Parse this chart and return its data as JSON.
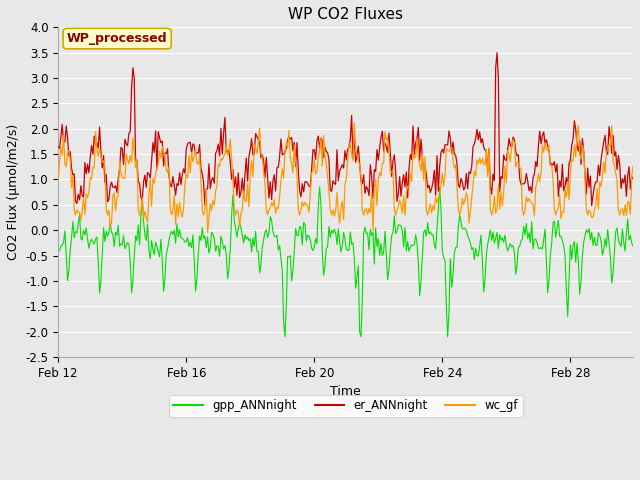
{
  "title": "WP CO2 Fluxes",
  "xlabel": "Time",
  "ylabel": "CO2 Flux (μmol/m2/s)",
  "ylim": [
    -2.5,
    4.0
  ],
  "yticks": [
    -2.5,
    -2.0,
    -1.5,
    -1.0,
    -0.5,
    0.0,
    0.5,
    1.0,
    1.5,
    2.0,
    2.5,
    3.0,
    3.5,
    4.0
  ],
  "xtick_labels": [
    "Feb 12",
    "Feb 16",
    "Feb 20",
    "Feb 24",
    "Feb 28"
  ],
  "xtick_positions": [
    0,
    96,
    192,
    288,
    384
  ],
  "n_points": 432,
  "bg_color": "#e8e8e8",
  "plot_bg_color": "#e8e8e8",
  "grid_color": "#ffffff",
  "line_colors": {
    "gpp": "#00dd00",
    "er": "#cc0000",
    "wc": "#ff9900"
  },
  "annotation_text": "WP_processed",
  "annotation_color": "#8b0000",
  "annotation_bg": "#ffffcc",
  "annotation_edge": "#ccaa00"
}
